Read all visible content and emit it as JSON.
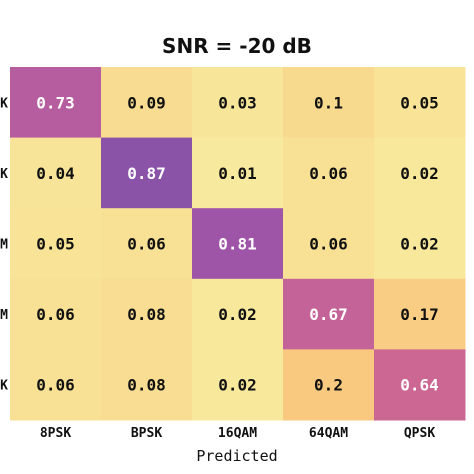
{
  "chart_data": {
    "type": "heatmap",
    "title": "SNR = -20 dB",
    "xlabel": "Predicted",
    "ylabel": "",
    "x_categories": [
      "8PSK",
      "BPSK",
      "16QAM",
      "64QAM",
      "QPSK"
    ],
    "y_tick_fragments": [
      "K",
      "K",
      "M",
      "M",
      "K"
    ],
    "values": [
      [
        0.73,
        0.09,
        0.03,
        0.1,
        0.05
      ],
      [
        0.04,
        0.87,
        0.01,
        0.06,
        0.02
      ],
      [
        0.05,
        0.06,
        0.81,
        0.06,
        0.02
      ],
      [
        0.06,
        0.08,
        0.02,
        0.67,
        0.17
      ],
      [
        0.06,
        0.08,
        0.02,
        0.2,
        0.64
      ]
    ],
    "vmin": 0,
    "vmax": 1,
    "colormap": [
      "#f7eb9f",
      "#f9c97f",
      "#f59c74",
      "#d76b8f",
      "#a255a8",
      "#5c4fa8"
    ]
  }
}
